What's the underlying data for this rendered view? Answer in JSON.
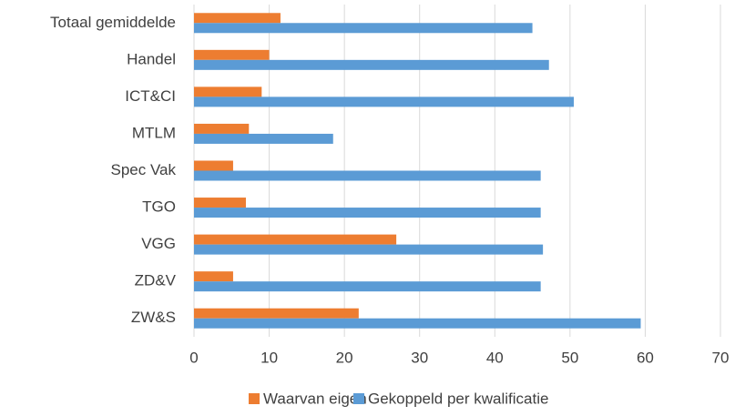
{
  "chart_data": {
    "type": "hbar",
    "categories": [
      "Totaal gemiddelde",
      "Handel",
      "ICT&CI",
      "MTLM",
      "Spec Vak",
      "TGO",
      "VGG",
      "ZD&V",
      "ZW&S"
    ],
    "series": [
      {
        "name": "Waarvan eigen",
        "color": "#ed7d31",
        "values": [
          11.5,
          10.0,
          9.0,
          7.3,
          5.2,
          6.9,
          26.9,
          5.2,
          21.9
        ]
      },
      {
        "name": "Gekoppeld per kwalificatie",
        "color": "#5b9bd5",
        "values": [
          45.0,
          47.2,
          50.5,
          18.5,
          46.1,
          46.1,
          46.4,
          46.1,
          59.4
        ]
      }
    ],
    "xlim": [
      0,
      70
    ],
    "xticks": [
      0,
      10,
      20,
      30,
      40,
      50,
      60,
      70
    ],
    "grid": true,
    "legend": "bottom"
  }
}
